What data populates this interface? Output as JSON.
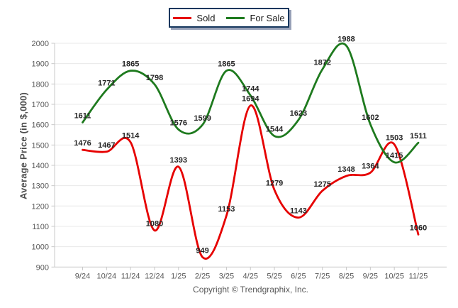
{
  "legend": {
    "items": [
      {
        "label": "Sold"
      },
      {
        "label": "For Sale"
      }
    ]
  },
  "chart_data": {
    "type": "line",
    "x": [
      "9/24",
      "10/24",
      "11/24",
      "12/24",
      "1/25",
      "2/25",
      "3/25",
      "4/25",
      "5/25",
      "6/25",
      "7/25",
      "8/25",
      "9/25",
      "10/25",
      "11/25"
    ],
    "series": [
      {
        "name": "Sold",
        "color": "#e60000",
        "values": [
          1476,
          1467,
          1514,
          1080,
          1393,
          949,
          1153,
          1694,
          1279,
          1143,
          1275,
          1348,
          1364,
          1503,
          1060
        ]
      },
      {
        "name": "For Sale",
        "color": "#1e7a1e",
        "values": [
          1611,
          1771,
          1865,
          1798,
          1576,
          1599,
          1865,
          1744,
          1544,
          1623,
          1872,
          1988,
          1602,
          1415,
          1511
        ]
      }
    ],
    "title": "",
    "xlabel": "",
    "ylabel": "Average Price (in $,000)",
    "ylim": [
      900,
      2000
    ],
    "ytick_step": 100,
    "grid": true,
    "smooth": true,
    "legend_position": "top-center",
    "point_labels": true
  },
  "footer": {
    "copyright": "Copyright © Trendgraphix, Inc."
  }
}
